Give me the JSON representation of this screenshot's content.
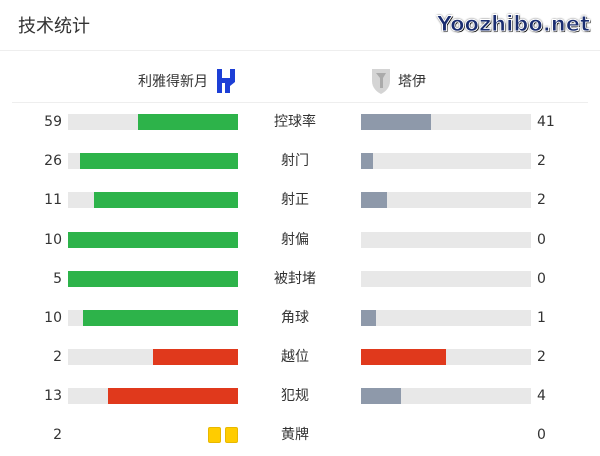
{
  "title": "技术统计",
  "home": {
    "name": "利雅得新月",
    "logo": "al-hilal-logo"
  },
  "away": {
    "name": "塔伊",
    "logo": "al-taee-logo"
  },
  "colors": {
    "green": "#2db34a",
    "red": "#e0391c",
    "gray": "#8e99aa",
    "track": "#e8e8e8",
    "yellow": "#ffcc00"
  },
  "stats": [
    {
      "label": "控球率",
      "home": "59",
      "away": "41",
      "home_frac": 0.59,
      "away_frac": 0.41,
      "home_color": "#2db34a",
      "away_color": "#8e99aa"
    },
    {
      "label": "射门",
      "home": "26",
      "away": "2",
      "home_frac": 0.929,
      "away_frac": 0.071,
      "home_color": "#2db34a",
      "away_color": "#8e99aa"
    },
    {
      "label": "射正",
      "home": "11",
      "away": "2",
      "home_frac": 0.846,
      "away_frac": 0.154,
      "home_color": "#2db34a",
      "away_color": "#8e99aa"
    },
    {
      "label": "射偏",
      "home": "10",
      "away": "0",
      "home_frac": 1,
      "away_frac": 0,
      "home_color": "#2db34a",
      "away_color": "#8e99aa"
    },
    {
      "label": "被封堵",
      "home": "5",
      "away": "0",
      "home_frac": 1,
      "away_frac": 0,
      "home_color": "#2db34a",
      "away_color": "#8e99aa"
    },
    {
      "label": "角球",
      "home": "10",
      "away": "1",
      "home_frac": 0.909,
      "away_frac": 0.091,
      "home_color": "#2db34a",
      "away_color": "#8e99aa"
    },
    {
      "label": "越位",
      "home": "2",
      "away": "2",
      "home_frac": 0.5,
      "away_frac": 0.5,
      "home_color": "#e0391c",
      "away_color": "#e0391c"
    },
    {
      "label": "犯规",
      "home": "13",
      "away": "4",
      "home_frac": 0.765,
      "away_frac": 0.235,
      "home_color": "#e0391c",
      "away_color": "#8e99aa"
    }
  ],
  "yellow": {
    "label": "黄牌",
    "home": "2",
    "away": "0",
    "home_cards": 2
  },
  "watermark": "Yoozhibo.net"
}
